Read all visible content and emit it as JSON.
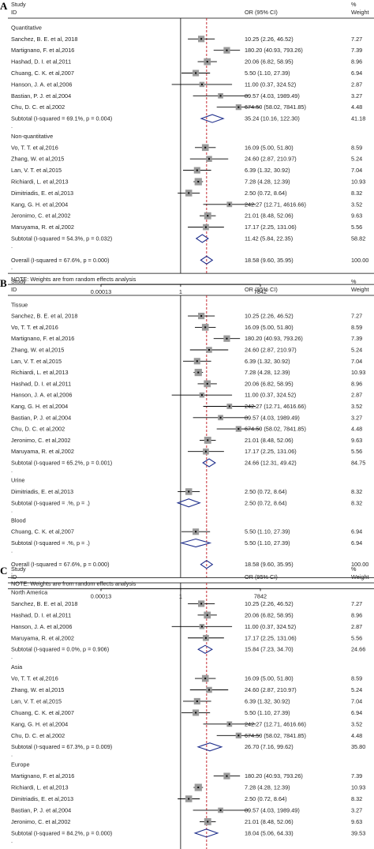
{
  "chart_data": [
    {
      "type": "forest",
      "panel": "A",
      "columns": {
        "study": "Study",
        "id": "ID",
        "or_ci": "OR (95% CI)",
        "pct": "%",
        "weight": "Weight"
      },
      "axis": {
        "scale": "log",
        "ticks": [
          {
            "label": "0.00013",
            "value": 0.00013
          },
          {
            "label": "1",
            "value": 1
          },
          {
            "label": "7842",
            "value": 7842
          }
        ],
        "ref_line": 1,
        "overall_line": 18.58
      },
      "groups": [
        {
          "name": "Quantitative",
          "studies": [
            {
              "label": "Sanchez, B. E. et al, 2018",
              "or": 10.25,
              "lo": 2.26,
              "hi": 46.52,
              "ci_text": "10.25 (2.26, 46.52)",
              "weight": "7.27"
            },
            {
              "label": "Martignano, F. et al,2016",
              "or": 180.2,
              "lo": 40.93,
              "hi": 793.26,
              "ci_text": "180.20 (40.93, 793.26)",
              "weight": "7.39"
            },
            {
              "label": "Hashad, D. I. et al,2011",
              "or": 20.06,
              "lo": 6.82,
              "hi": 58.95,
              "ci_text": "20.06 (6.82, 58.95)",
              "weight": "8.96"
            },
            {
              "label": "Chuang, C. K. et al,2007",
              "or": 5.5,
              "lo": 1.1,
              "hi": 27.39,
              "ci_text": "5.50 (1.10, 27.39)",
              "weight": "6.94"
            },
            {
              "label": "Hanson, J. A. et al,2006",
              "or": 11.0,
              "lo": 0.37,
              "hi": 324.52,
              "ci_text": "11.00 (0.37, 324.52)",
              "weight": "2.87"
            },
            {
              "label": "Bastian, P. J. et al,2004",
              "or": 89.57,
              "lo": 4.03,
              "hi": 1989.49,
              "ci_text": "89.57 (4.03, 1989.49)",
              "weight": "3.27"
            },
            {
              "label": "Chu, D. C. et al,2002",
              "or": 674.5,
              "lo": 58.02,
              "hi": 7841.85,
              "ci_text": "674.50 (58.02, 7841.85)",
              "weight": "4.48"
            }
          ],
          "subtotal": {
            "label": "Subtotal  (I-squared = 69.1%, p = 0.004)",
            "or": 35.24,
            "lo": 10.16,
            "hi": 122.3,
            "ci_text": "35.24 (10.16, 122.30)",
            "weight": "41.18"
          }
        },
        {
          "name": "Non-quantitative",
          "studies": [
            {
              "label": "Vo, T. T. et al,2016",
              "or": 16.09,
              "lo": 5.0,
              "hi": 51.8,
              "ci_text": "16.09 (5.00, 51.80)",
              "weight": "8.59"
            },
            {
              "label": "Zhang, W. et al,2015",
              "or": 24.6,
              "lo": 2.87,
              "hi": 210.97,
              "ci_text": "24.60 (2.87, 210.97)",
              "weight": "5.24"
            },
            {
              "label": "Lan, V. T. et al,2015",
              "or": 6.39,
              "lo": 1.32,
              "hi": 30.92,
              "ci_text": "6.39 (1.32, 30.92)",
              "weight": "7.04"
            },
            {
              "label": "Richiardi, L. et al,2013",
              "or": 7.28,
              "lo": 4.28,
              "hi": 12.39,
              "ci_text": "7.28 (4.28, 12.39)",
              "weight": "10.93"
            },
            {
              "label": "Dimitriadis, E. et al,2013",
              "or": 2.5,
              "lo": 0.72,
              "hi": 8.64,
              "ci_text": "2.50 (0.72, 8.64)",
              "weight": "8.32"
            },
            {
              "label": "Kang, G. H. et al,2004",
              "or": 242.27,
              "lo": 12.71,
              "hi": 4616.66,
              "ci_text": "242.27 (12.71, 4616.66)",
              "weight": "3.52"
            },
            {
              "label": "Jeronimo, C. et al,2002",
              "or": 21.01,
              "lo": 8.48,
              "hi": 52.06,
              "ci_text": "21.01 (8.48, 52.06)",
              "weight": "9.63"
            },
            {
              "label": "Maruyama, R. et al,2002",
              "or": 17.17,
              "lo": 2.25,
              "hi": 131.06,
              "ci_text": "17.17 (2.25, 131.06)",
              "weight": "5.56"
            }
          ],
          "subtotal": {
            "label": "Subtotal  (I-squared = 54.3%, p = 0.032)",
            "or": 11.42,
            "lo": 5.84,
            "hi": 22.35,
            "ci_text": "11.42 (5.84, 22.35)",
            "weight": "58.82"
          }
        }
      ],
      "overall": {
        "label": "Overall  (I-squared = 67.6%, p = 0.000)",
        "or": 18.58,
        "lo": 9.6,
        "hi": 35.95,
        "ci_text": "18.58 (9.60, 35.95)",
        "weight": "100.00"
      },
      "note": "NOTE: Weights are from random effects analysis"
    },
    {
      "type": "forest",
      "panel": "B",
      "columns": {
        "study": "Study",
        "id": "ID",
        "or_ci": "OR (95% CI)",
        "pct": "%",
        "weight": "Weight"
      },
      "axis": {
        "scale": "log",
        "ticks": [
          {
            "label": "0.00013",
            "value": 0.00013
          },
          {
            "label": "1",
            "value": 1
          },
          {
            "label": "7842",
            "value": 7842
          }
        ],
        "ref_line": 1,
        "overall_line": 18.58
      },
      "groups": [
        {
          "name": "Tissue",
          "studies": [
            {
              "label": "Sanchez, B. E. et al, 2018",
              "or": 10.25,
              "lo": 2.26,
              "hi": 46.52,
              "ci_text": "10.25 (2.26, 46.52)",
              "weight": "7.27"
            },
            {
              "label": "Vo, T. T. et al,2016",
              "or": 16.09,
              "lo": 5.0,
              "hi": 51.8,
              "ci_text": "16.09 (5.00, 51.80)",
              "weight": "8.59"
            },
            {
              "label": "Martignano, F. et al,2016",
              "or": 180.2,
              "lo": 40.93,
              "hi": 793.26,
              "ci_text": "180.20 (40.93, 793.26)",
              "weight": "7.39"
            },
            {
              "label": "Zhang, W. et al,2015",
              "or": 24.6,
              "lo": 2.87,
              "hi": 210.97,
              "ci_text": "24.60 (2.87, 210.97)",
              "weight": "5.24"
            },
            {
              "label": "Lan, V. T. et al,2015",
              "or": 6.39,
              "lo": 1.32,
              "hi": 30.92,
              "ci_text": "6.39 (1.32, 30.92)",
              "weight": "7.04"
            },
            {
              "label": "Richiardi, L. et al,2013",
              "or": 7.28,
              "lo": 4.28,
              "hi": 12.39,
              "ci_text": "7.28 (4.28, 12.39)",
              "weight": "10.93"
            },
            {
              "label": "Hashad, D. I. et al,2011",
              "or": 20.06,
              "lo": 6.82,
              "hi": 58.95,
              "ci_text": "20.06 (6.82, 58.95)",
              "weight": "8.96"
            },
            {
              "label": "Hanson, J. A. et al,2006",
              "or": 11.0,
              "lo": 0.37,
              "hi": 324.52,
              "ci_text": "11.00 (0.37, 324.52)",
              "weight": "2.87"
            },
            {
              "label": "Kang, G. H. et al,2004",
              "or": 242.27,
              "lo": 12.71,
              "hi": 4616.66,
              "ci_text": "242.27 (12.71, 4616.66)",
              "weight": "3.52"
            },
            {
              "label": "Bastian, P. J. et al,2004",
              "or": 89.57,
              "lo": 4.03,
              "hi": 1989.49,
              "ci_text": "89.57 (4.03, 1989.49)",
              "weight": "3.27"
            },
            {
              "label": "Chu, D. C. et al,2002",
              "or": 674.5,
              "lo": 58.02,
              "hi": 7841.85,
              "ci_text": "674.50 (58.02, 7841.85)",
              "weight": "4.48"
            },
            {
              "label": "Jeronimo, C. et al,2002",
              "or": 21.01,
              "lo": 8.48,
              "hi": 52.06,
              "ci_text": "21.01 (8.48, 52.06)",
              "weight": "9.63"
            },
            {
              "label": "Maruyama, R. et al,2002",
              "or": 17.17,
              "lo": 2.25,
              "hi": 131.06,
              "ci_text": "17.17 (2.25, 131.06)",
              "weight": "5.56"
            }
          ],
          "subtotal": {
            "label": "Subtotal  (I-squared = 65.2%, p = 0.001)",
            "or": 24.66,
            "lo": 12.31,
            "hi": 49.42,
            "ci_text": "24.66 (12.31, 49.42)",
            "weight": "84.75"
          }
        },
        {
          "name": "Urine",
          "studies": [
            {
              "label": "Dimitriadis, E. et al,2013",
              "or": 2.5,
              "lo": 0.72,
              "hi": 8.64,
              "ci_text": "2.50 (0.72, 8.64)",
              "weight": "8.32"
            }
          ],
          "subtotal": {
            "label": "Subtotal  (I-squared = .%, p = .)",
            "or": 2.5,
            "lo": 0.72,
            "hi": 8.64,
            "ci_text": "2.50 (0.72, 8.64)",
            "weight": "8.32"
          }
        },
        {
          "name": "Blood",
          "studies": [
            {
              "label": "Chuang, C. K. et al,2007",
              "or": 5.5,
              "lo": 1.1,
              "hi": 27.39,
              "ci_text": "5.50 (1.10, 27.39)",
              "weight": "6.94"
            }
          ],
          "subtotal": {
            "label": "Subtotal  (I-squared = .%, p = .)",
            "or": 5.5,
            "lo": 1.1,
            "hi": 27.39,
            "ci_text": "5.50 (1.10, 27.39)",
            "weight": "6.94"
          }
        }
      ],
      "overall": {
        "label": "Overall  (I-squared = 67.6%, p = 0.000)",
        "or": 18.58,
        "lo": 9.6,
        "hi": 35.95,
        "ci_text": "18.58 (9.60, 35.95)",
        "weight": "100.00"
      },
      "note": "NOTE: Weights are from random effects analysis"
    },
    {
      "type": "forest",
      "panel": "C",
      "columns": {
        "study": "Study",
        "id": "ID",
        "or_ci": "OR (95% CI)",
        "pct": "%",
        "weight": "Weight"
      },
      "axis": {
        "scale": "log",
        "ticks": [
          {
            "label": "0.00013",
            "value": 0.00013
          },
          {
            "label": "1",
            "value": 1
          },
          {
            "label": "7842",
            "value": 7842
          }
        ],
        "ref_line": 1,
        "overall_line": 18.58
      },
      "groups": [
        {
          "name": "North America",
          "studies": [
            {
              "label": "Sanchez, B. E. et al, 2018",
              "or": 10.25,
              "lo": 2.26,
              "hi": 46.52,
              "ci_text": "10.25 (2.26, 46.52)",
              "weight": "7.27"
            },
            {
              "label": "Hashad, D. I. et al,2011",
              "or": 20.06,
              "lo": 6.82,
              "hi": 58.95,
              "ci_text": "20.06 (6.82, 58.95)",
              "weight": "8.96"
            },
            {
              "label": "Hanson, J. A. et al,2006",
              "or": 11.0,
              "lo": 0.37,
              "hi": 324.52,
              "ci_text": "11.00 (0.37, 324.52)",
              "weight": "2.87"
            },
            {
              "label": "Maruyama, R. et al,2002",
              "or": 17.17,
              "lo": 2.25,
              "hi": 131.06,
              "ci_text": "17.17 (2.25, 131.06)",
              "weight": "5.56"
            }
          ],
          "subtotal": {
            "label": "Subtotal  (I-squared = 0.0%, p = 0.906)",
            "or": 15.84,
            "lo": 7.23,
            "hi": 34.7,
            "ci_text": "15.84 (7.23, 34.70)",
            "weight": "24.66"
          }
        },
        {
          "name": "Asia",
          "studies": [
            {
              "label": "Vo, T. T. et al,2016",
              "or": 16.09,
              "lo": 5.0,
              "hi": 51.8,
              "ci_text": "16.09 (5.00, 51.80)",
              "weight": "8.59"
            },
            {
              "label": "Zhang, W. et al,2015",
              "or": 24.6,
              "lo": 2.87,
              "hi": 210.97,
              "ci_text": "24.60 (2.87, 210.97)",
              "weight": "5.24"
            },
            {
              "label": "Lan, V. T. et al,2015",
              "or": 6.39,
              "lo": 1.32,
              "hi": 30.92,
              "ci_text": "6.39 (1.32, 30.92)",
              "weight": "7.04"
            },
            {
              "label": "Chuang, C. K. et al,2007",
              "or": 5.5,
              "lo": 1.1,
              "hi": 27.39,
              "ci_text": "5.50 (1.10, 27.39)",
              "weight": "6.94"
            },
            {
              "label": "Kang, G. H. et al,2004",
              "or": 242.27,
              "lo": 12.71,
              "hi": 4616.66,
              "ci_text": "242.27 (12.71, 4616.66)",
              "weight": "3.52"
            },
            {
              "label": "Chu, D. C. et al,2002",
              "or": 674.5,
              "lo": 58.02,
              "hi": 7841.85,
              "ci_text": "674.50 (58.02, 7841.85)",
              "weight": "4.48"
            }
          ],
          "subtotal": {
            "label": "Subtotal  (I-squared = 67.3%, p = 0.009)",
            "or": 26.7,
            "lo": 7.16,
            "hi": 99.62,
            "ci_text": "26.70 (7.16, 99.62)",
            "weight": "35.80"
          }
        },
        {
          "name": "Europe",
          "studies": [
            {
              "label": "Martignano, F. et al,2016",
              "or": 180.2,
              "lo": 40.93,
              "hi": 793.26,
              "ci_text": "180.20 (40.93, 793.26)",
              "weight": "7.39"
            },
            {
              "label": "Richiardi, L. et al,2013",
              "or": 7.28,
              "lo": 4.28,
              "hi": 12.39,
              "ci_text": "7.28 (4.28, 12.39)",
              "weight": "10.93"
            },
            {
              "label": "Dimitriadis, E. et al,2013",
              "or": 2.5,
              "lo": 0.72,
              "hi": 8.64,
              "ci_text": "2.50 (0.72, 8.64)",
              "weight": "8.32"
            },
            {
              "label": "Bastian, P. J. et al,2004",
              "or": 89.57,
              "lo": 4.03,
              "hi": 1989.49,
              "ci_text": "89.57 (4.03, 1989.49)",
              "weight": "3.27"
            },
            {
              "label": "Jeronimo, C. et al,2002",
              "or": 21.01,
              "lo": 8.48,
              "hi": 52.06,
              "ci_text": "21.01 (8.48, 52.06)",
              "weight": "9.63"
            }
          ],
          "subtotal": {
            "label": "Subtotal  (I-squared = 84.2%, p = 0.000)",
            "or": 18.04,
            "lo": 5.06,
            "hi": 64.33,
            "ci_text": "18.04 (5.06, 64.33)",
            "weight": "39.53"
          }
        }
      ],
      "overall": {
        "label": "Overall  (I-squared = 67.6%, p = 0.000)",
        "or": 18.58,
        "lo": 9.6,
        "hi": 35.95,
        "ci_text": "18.58 (9.60, 35.95)",
        "weight": "100.00"
      },
      "note": "NOTE: Weights are from random effects analysis"
    }
  ],
  "colors": {
    "ink": "#000000",
    "box": "#9a9a9a",
    "diamond": "#1f2f8c",
    "ref_dash": "#c0141c",
    "text": "#222222"
  }
}
